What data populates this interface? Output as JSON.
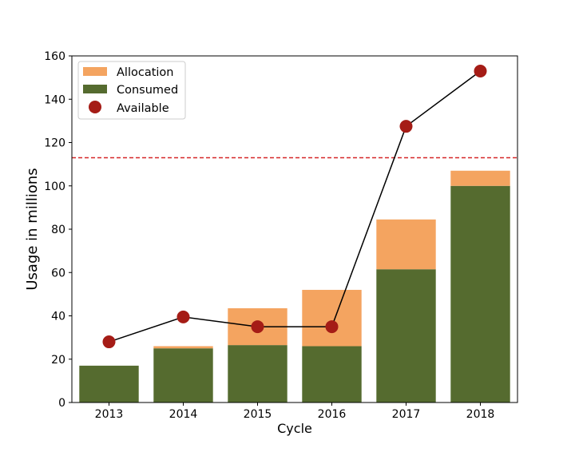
{
  "chart_data": {
    "type": "bar",
    "title": "",
    "xlabel": "Cycle",
    "ylabel": "Usage in millions",
    "categories": [
      "2013",
      "2014",
      "2015",
      "2016",
      "2017",
      "2018"
    ],
    "ylim": [
      0,
      160
    ],
    "yticks": [
      0,
      20,
      40,
      60,
      80,
      100,
      120,
      140,
      160
    ],
    "stacked": true,
    "series": [
      {
        "name": "Consumed",
        "kind": "bar",
        "color": "#556b2f",
        "values": [
          17,
          25,
          26.5,
          26,
          61.5,
          100
        ]
      },
      {
        "name": "Allocation",
        "kind": "bar",
        "color": "#f4a460",
        "values": [
          0,
          1,
          17,
          26,
          23,
          7
        ]
      },
      {
        "name": "Available",
        "kind": "line",
        "marker": "circle",
        "color": "#a51c16",
        "line_color": "#000000",
        "values": [
          28,
          39.5,
          35,
          35,
          127.5,
          153
        ]
      }
    ],
    "reference_line": {
      "value": 113,
      "style": "dashed",
      "color": "#d62728"
    },
    "legend": {
      "position": "top-left",
      "entries": [
        "Allocation",
        "Consumed",
        "Available"
      ]
    },
    "grid": false
  }
}
